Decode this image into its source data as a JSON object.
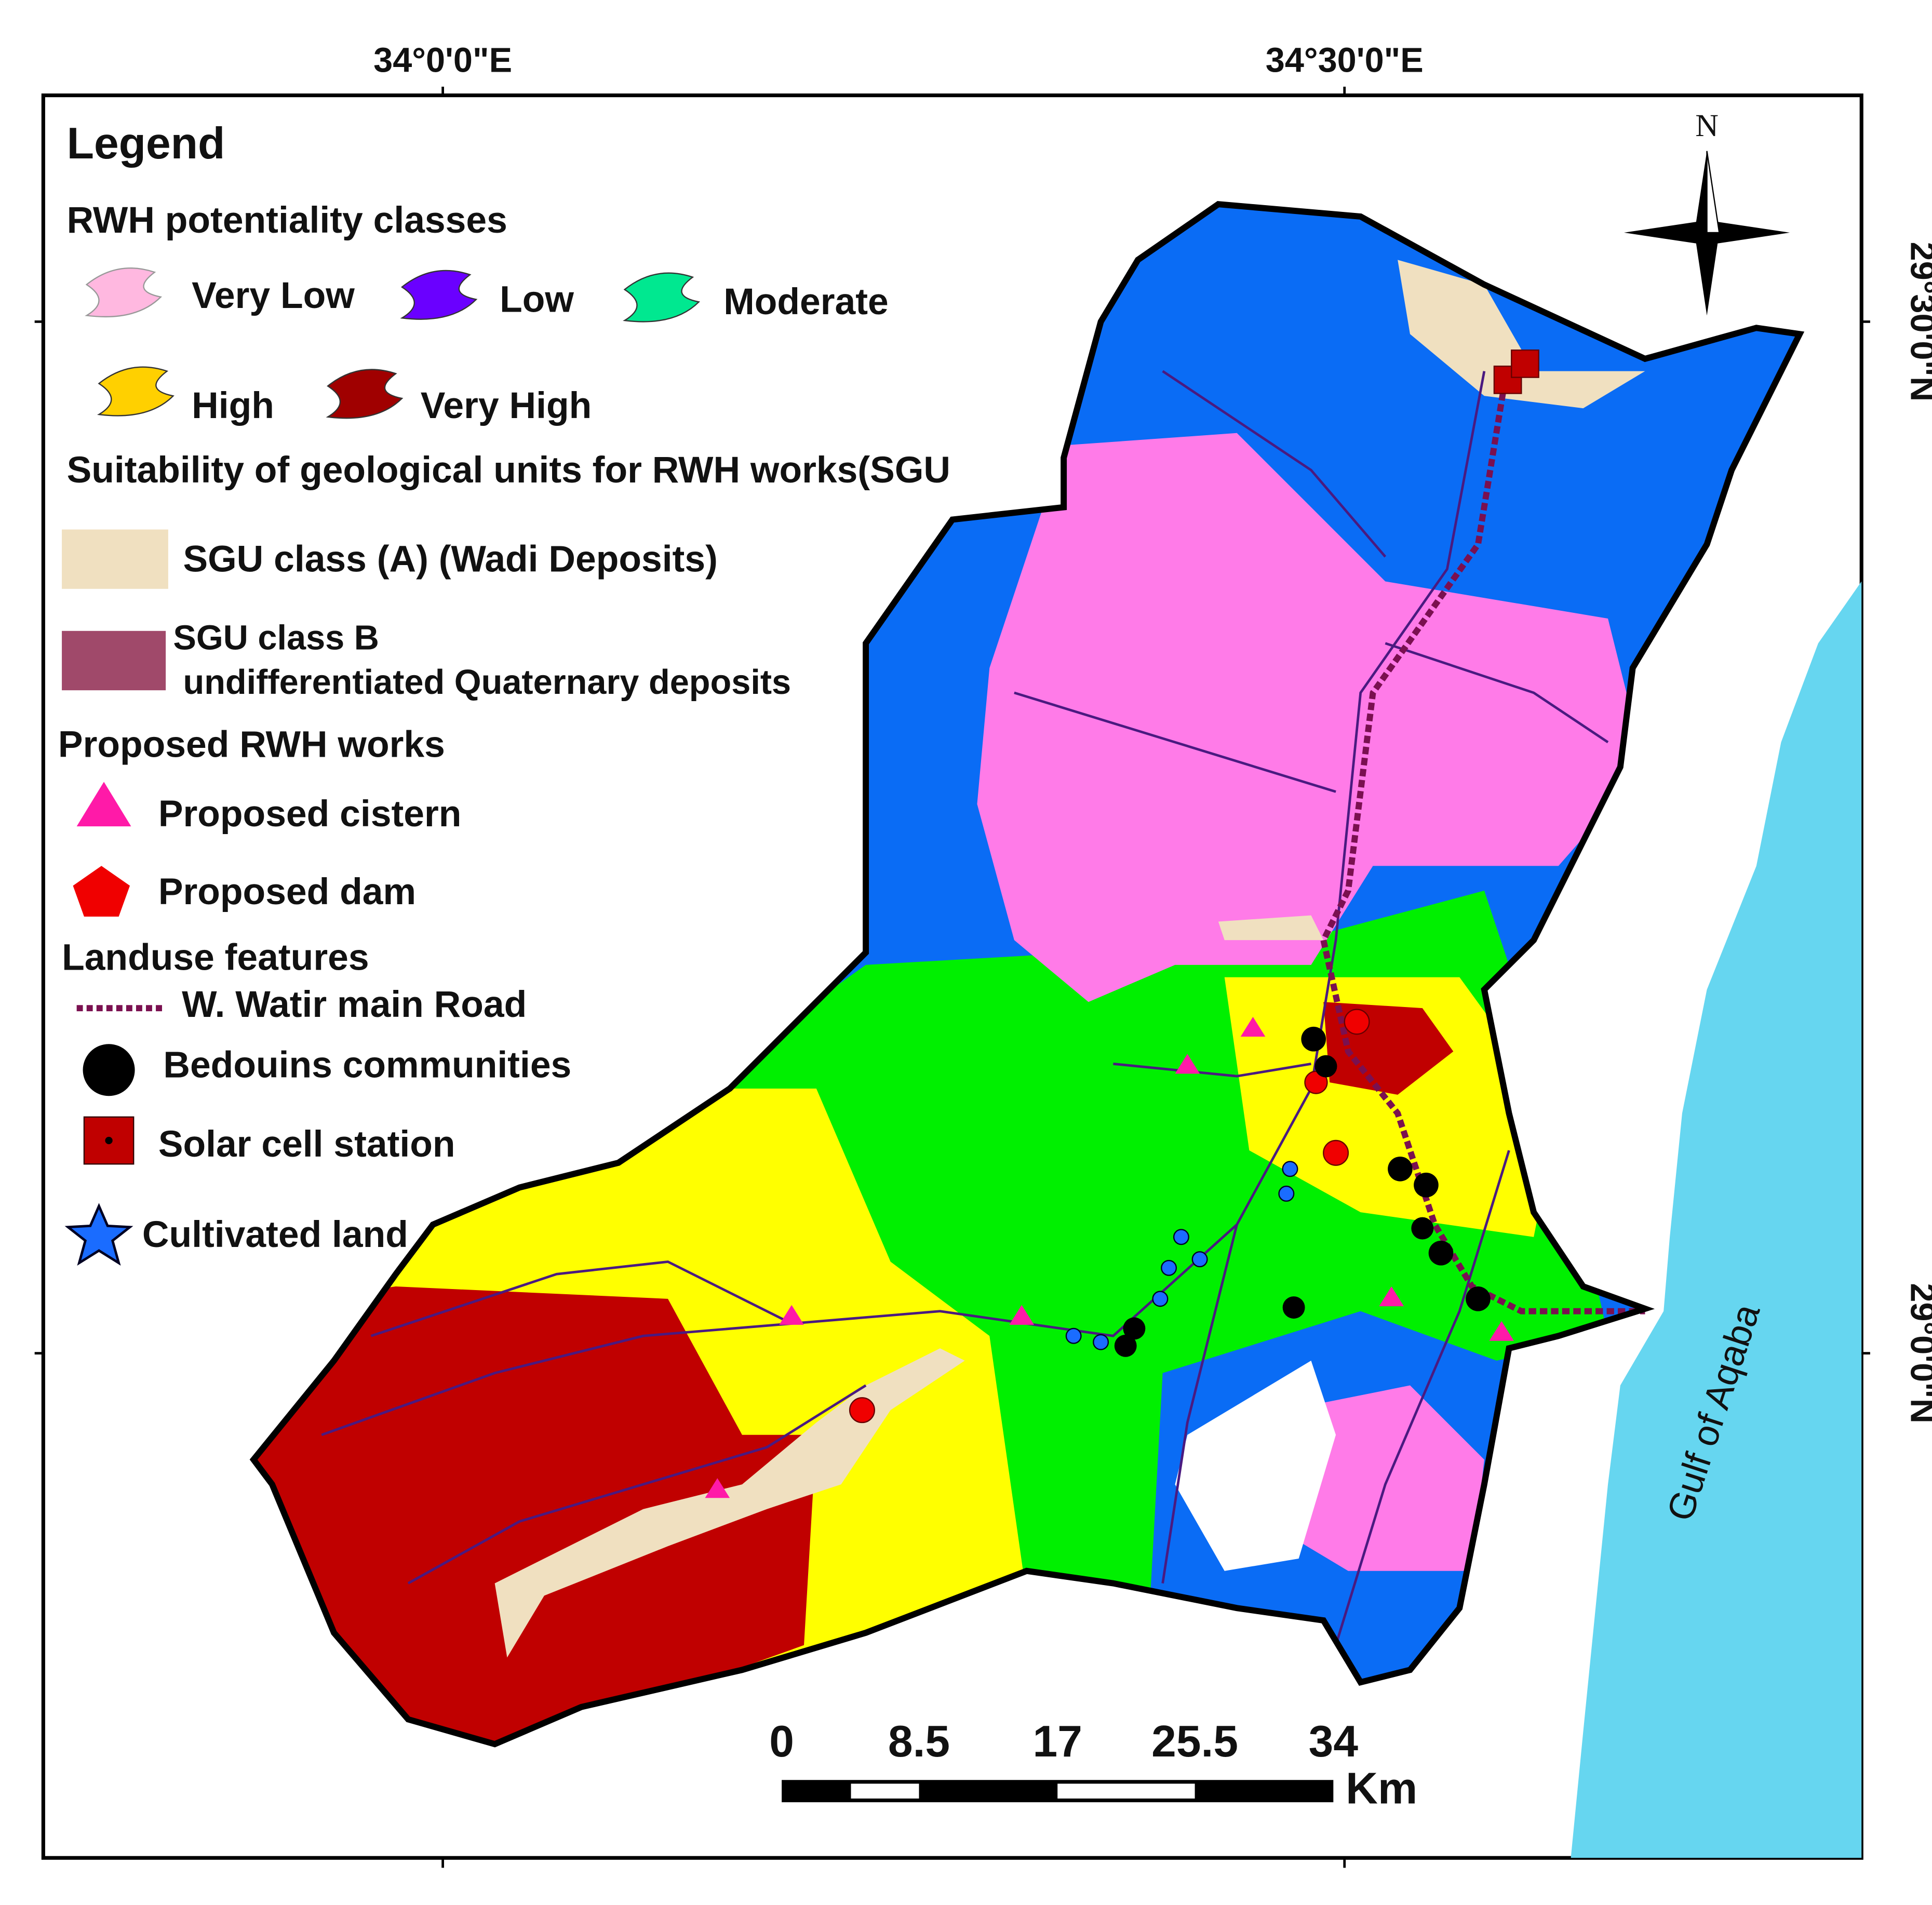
{
  "coordinates": {
    "top": [
      "34°0'0\"E",
      "34°30'0\"E"
    ],
    "right": [
      "29°30'0\"N",
      "29°0'0\"N"
    ]
  },
  "north": "N",
  "sea_label": "Gulf of Aqaba",
  "legend": {
    "title": "Legend",
    "rwh": {
      "title": "RWH potentiality classes",
      "items": [
        "Very Low",
        "Low",
        "Moderate",
        "High",
        "Very High"
      ]
    },
    "sgu": {
      "title": "Suitability of geological units for RWH works(SGU",
      "class_a": "SGU class (A) (Wadi Deposits)",
      "class_b": [
        "SGU  class B",
        "undifferentiated Quaternary deposits"
      ]
    },
    "works": {
      "title": "Proposed RWH works",
      "items": [
        "Proposed cistern",
        "Proposed dam"
      ]
    },
    "landuse": {
      "title": "Landuse features",
      "items": [
        "W. Watir main Road",
        "Bedouins communities",
        "Solar cell station",
        "Cultivated land"
      ]
    }
  },
  "scale_bar": {
    "ticks": [
      "0",
      "8.5",
      "17",
      "25.5",
      "34"
    ],
    "unit": "Km"
  }
}
